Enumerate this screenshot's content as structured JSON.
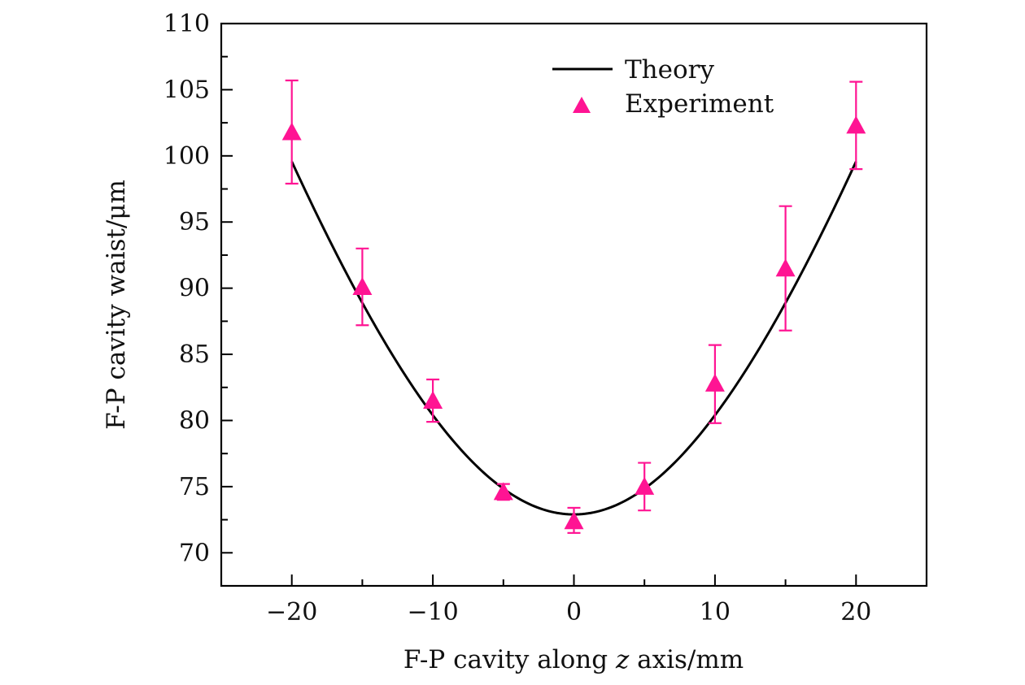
{
  "chart_data": {
    "type": "scatter",
    "xlabel": "F-P cavity along z axis/mm",
    "xlabel_parts": {
      "before": "F-P cavity along ",
      "italic": "z",
      "after": " axis/mm"
    },
    "ylabel": "F-P cavity waist/μm",
    "xlim": [
      -25,
      25
    ],
    "ylim": [
      67.5,
      110
    ],
    "x_ticks": [
      -20,
      -10,
      0,
      10,
      20
    ],
    "x_tick_labels": [
      "−20",
      "−10",
      "0",
      "10",
      "20"
    ],
    "x_minor_ticks": [
      -15,
      -5,
      5,
      15
    ],
    "y_ticks": [
      70,
      75,
      80,
      85,
      90,
      95,
      100,
      105,
      110
    ],
    "y_tick_labels": [
      "70",
      "75",
      "80",
      "85",
      "90",
      "95",
      "100",
      "105",
      "110"
    ],
    "grid": false,
    "legend_position": "top-right",
    "series": [
      {
        "name": "Theory",
        "kind": "line",
        "color": "#000000",
        "model": {
          "w0": 72.9,
          "zR": 21.5,
          "unit": "mm"
        },
        "x_range": [
          -20,
          20
        ]
      },
      {
        "name": "Experiment",
        "kind": "scatter",
        "marker": "triangle",
        "color": "#ff1493",
        "x": [
          -20,
          -15,
          -10,
          -5,
          0,
          5,
          10,
          15,
          20
        ],
        "y": [
          101.8,
          90.1,
          81.5,
          74.6,
          72.4,
          75.0,
          82.8,
          91.5,
          102.3
        ],
        "err_low": [
          97.9,
          87.2,
          79.9,
          74.0,
          71.5,
          73.2,
          79.8,
          86.8,
          99.0
        ],
        "err_high": [
          105.7,
          93.0,
          83.1,
          75.2,
          73.4,
          76.8,
          85.7,
          96.2,
          105.6
        ]
      }
    ]
  }
}
